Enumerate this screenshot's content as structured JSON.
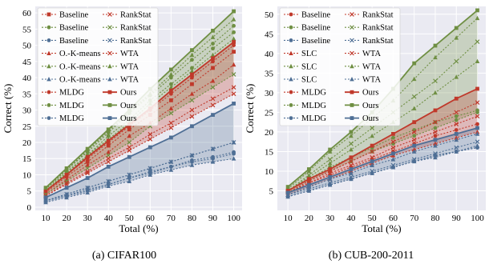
{
  "colors": {
    "baseline": "#c0392b",
    "green": "#6f8f43",
    "blue": "#4f6f95",
    "redfill": "#e9a3a3",
    "greenfill": "#b6c79a",
    "bluefill": "#9fb3c8",
    "panelbg": "#eaeaf2",
    "grid": "#ffffff"
  },
  "chart_data": [
    {
      "type": "line",
      "caption": "(a) CIFAR100",
      "xlabel": "Total (%)",
      "ylabel": "Correct (%)",
      "x": [
        10,
        20,
        30,
        40,
        50,
        60,
        70,
        80,
        90,
        100
      ],
      "xlim": [
        5,
        104
      ],
      "ylim": [
        -1,
        62
      ],
      "yticks": [
        0,
        5,
        10,
        15,
        20,
        25,
        30,
        35,
        40,
        45,
        50,
        55,
        60
      ],
      "legend_placement": "top-left",
      "series": [
        {
          "name": "Baseline",
          "color": "#c0392b",
          "marker": "square",
          "style": "dotted",
          "values": [
            4.5,
            9.5,
            14,
            19,
            24,
            28.5,
            33,
            38,
            43,
            48
          ]
        },
        {
          "name": "Baseline",
          "color": "#6f8f43",
          "marker": "circle",
          "style": "dotted",
          "values": [
            5,
            11,
            16,
            22,
            27,
            33,
            38,
            43,
            49,
            54
          ]
        },
        {
          "name": "Baseline",
          "color": "#4f6f95",
          "marker": "circle",
          "style": "dotted",
          "values": [
            2,
            3.5,
            5,
            7,
            9,
            10.5,
            12.5,
            14,
            15,
            16.5
          ]
        },
        {
          "name": "O.-K-means",
          "color": "#c0392b",
          "marker": "triangle",
          "style": "dotted",
          "values": [
            4,
            8.5,
            13,
            17,
            22,
            26,
            30.5,
            35,
            39,
            44
          ]
        },
        {
          "name": "O.-K-means",
          "color": "#6f8f43",
          "marker": "triangle",
          "style": "dotted",
          "values": [
            5,
            10.5,
            16,
            21,
            26,
            32,
            37,
            42,
            47,
            52
          ]
        },
        {
          "name": "O.-K-means",
          "color": "#4f6f95",
          "marker": "triangle",
          "style": "dotted",
          "values": [
            1.5,
            3,
            4.5,
            6.5,
            8,
            10,
            11.5,
            13,
            14,
            15
          ]
        },
        {
          "name": "MLDG",
          "color": "#c0392b",
          "marker": "circle",
          "style": "dotted",
          "values": [
            5,
            10,
            15,
            20,
            25,
            30,
            35,
            40,
            45,
            50
          ]
        },
        {
          "name": "MLDG",
          "color": "#6f8f43",
          "marker": "circle",
          "style": "dotted",
          "values": [
            5.5,
            11.5,
            17,
            23,
            29,
            34.5,
            40,
            45.5,
            50.5,
            56
          ]
        },
        {
          "name": "MLDG",
          "color": "#4f6f95",
          "marker": "circle",
          "style": "dotted",
          "values": [
            2,
            3.5,
            5.5,
            7,
            9,
            11,
            12.5,
            14.5,
            15.5,
            17
          ]
        },
        {
          "name": "RankStat",
          "color": "#c0392b",
          "marker": "x",
          "style": "dotted",
          "values": [
            3.5,
            7,
            10.5,
            14,
            17.5,
            21,
            24.5,
            28,
            31.5,
            35
          ]
        },
        {
          "name": "RankStat",
          "color": "#6f8f43",
          "marker": "x",
          "style": "dotted",
          "values": [
            4,
            8,
            12,
            16,
            20,
            25,
            29,
            33,
            37,
            41
          ]
        },
        {
          "name": "RankStat",
          "color": "#4f6f95",
          "marker": "x",
          "style": "dotted",
          "values": [
            2,
            4,
            6,
            8,
            10,
            12,
            14,
            16,
            18,
            20
          ]
        },
        {
          "name": "WTA",
          "color": "#c0392b",
          "marker": "x",
          "style": "dotted",
          "values": [
            3.5,
            7.5,
            11,
            15,
            18.5,
            22.5,
            26,
            30,
            33.5,
            37
          ]
        },
        {
          "name": "WTA",
          "color": "#6f8f43",
          "marker": "triangle",
          "style": "dotted",
          "values": [
            5.5,
            11.5,
            17.5,
            23.5,
            29.5,
            35,
            41,
            47,
            52.5,
            58
          ]
        },
        {
          "name": "WTA",
          "color": "#4f6f95",
          "marker": "triangle",
          "style": "dotted",
          "values": [
            2,
            4,
            6,
            8,
            10,
            12,
            14,
            16,
            18,
            20
          ]
        },
        {
          "name": "Ours",
          "color": "#c0392b",
          "marker": "square",
          "style": "solid",
          "values": [
            5,
            10,
            15.5,
            20.5,
            25.5,
            30.5,
            36,
            41,
            46,
            51
          ]
        },
        {
          "name": "Ours",
          "color": "#6f8f43",
          "marker": "square",
          "style": "solid",
          "values": [
            6,
            12,
            18,
            24,
            30,
            36.5,
            42.5,
            48.5,
            54.5,
            60.5
          ]
        },
        {
          "name": "Ours",
          "color": "#4f6f95",
          "marker": "square",
          "style": "solid",
          "values": [
            3,
            6,
            9,
            12.5,
            15.5,
            18.5,
            21.5,
            25,
            28.5,
            32
          ]
        }
      ],
      "bands": [
        {
          "color": "#6f8f43",
          "lower": [
            4,
            8,
            12,
            16,
            20,
            25,
            29,
            33,
            37,
            41
          ],
          "upper": [
            6,
            12,
            18,
            24,
            30,
            36.5,
            42.5,
            48.5,
            54.5,
            60.5
          ]
        },
        {
          "color": "#c0392b",
          "lower": [
            3.5,
            7,
            10.5,
            14,
            17.5,
            21,
            24.5,
            28,
            31.5,
            35
          ],
          "upper": [
            5,
            10,
            15.5,
            20.5,
            25.5,
            30.5,
            36,
            41,
            46,
            51
          ]
        },
        {
          "color": "#4f6f95",
          "lower": [
            1.5,
            3,
            4.5,
            6.5,
            8,
            10,
            11.5,
            13,
            14,
            15
          ],
          "upper": [
            3,
            6,
            9,
            12.5,
            15.5,
            18.5,
            21.5,
            25,
            28.5,
            32
          ]
        }
      ]
    },
    {
      "type": "line",
      "caption": "(b) CUB-200-2011",
      "xlabel": "Total (%)",
      "ylabel": "Correct (%)",
      "x": [
        10,
        20,
        30,
        40,
        50,
        60,
        70,
        80,
        90,
        100
      ],
      "xlim": [
        5,
        104
      ],
      "ylim": [
        0,
        52
      ],
      "yticks": [
        5,
        10,
        15,
        20,
        25,
        30,
        35,
        40,
        45,
        50
      ],
      "legend_placement": "top-left",
      "series": [
        {
          "name": "Baseline",
          "color": "#c0392b",
          "marker": "circle",
          "style": "dotted",
          "values": [
            4.5,
            7,
            9,
            11,
            13,
            15,
            17,
            19,
            20.5,
            22
          ]
        },
        {
          "name": "Baseline",
          "color": "#6f8f43",
          "marker": "circle",
          "style": "dotted",
          "values": [
            4.5,
            7.5,
            10,
            12.5,
            15,
            17,
            19,
            21,
            23,
            25
          ]
        },
        {
          "name": "Baseline",
          "color": "#4f6f95",
          "marker": "circle",
          "style": "dotted",
          "values": [
            3.5,
            5,
            6.5,
            8,
            9.5,
            11,
            12.5,
            14,
            15,
            16
          ]
        },
        {
          "name": "SLC",
          "color": "#c0392b",
          "marker": "triangle",
          "style": "dotted",
          "values": [
            4,
            6,
            8,
            10,
            12,
            14,
            15.5,
            17,
            18.5,
            20
          ]
        },
        {
          "name": "SLC",
          "color": "#6f8f43",
          "marker": "triangle",
          "style": "dotted",
          "values": [
            5,
            8.5,
            12,
            15.5,
            19,
            22.5,
            26,
            30,
            34,
            38
          ]
        },
        {
          "name": "SLC",
          "color": "#4f6f95",
          "marker": "triangle",
          "style": "dotted",
          "values": [
            3.5,
            5,
            6.5,
            8,
            9.5,
            11,
            12.5,
            13.5,
            15,
            16.5
          ]
        },
        {
          "name": "MLDG",
          "color": "#c0392b",
          "marker": "circle",
          "style": "dotted",
          "values": [
            4.5,
            6.5,
            8.5,
            10.5,
            12.5,
            14.5,
            16.5,
            18,
            19.5,
            21
          ]
        },
        {
          "name": "MLDG",
          "color": "#6f8f43",
          "marker": "circle",
          "style": "dotted",
          "values": [
            5,
            8,
            11,
            13.5,
            16,
            18.5,
            20.5,
            22.5,
            24,
            25.5
          ]
        },
        {
          "name": "MLDG",
          "color": "#4f6f95",
          "marker": "circle",
          "style": "dotted",
          "values": [
            3.5,
            5,
            6.5,
            8,
            9.5,
            11,
            12.5,
            14,
            15,
            16
          ]
        },
        {
          "name": "RankStat",
          "color": "#c0392b",
          "marker": "x",
          "style": "dotted",
          "values": [
            4.5,
            7,
            9.5,
            11.5,
            13.5,
            16,
            18,
            20,
            22,
            24
          ]
        },
        {
          "name": "RankStat",
          "color": "#6f8f43",
          "marker": "x",
          "style": "dotted",
          "values": [
            5,
            9,
            13,
            17,
            21,
            25,
            29,
            33,
            38,
            43
          ]
        },
        {
          "name": "RankStat",
          "color": "#4f6f95",
          "marker": "x",
          "style": "dotted",
          "values": [
            4,
            5.5,
            7,
            8.5,
            10,
            11.5,
            13,
            14.5,
            16,
            17.5
          ]
        },
        {
          "name": "WTA",
          "color": "#c0392b",
          "marker": "x",
          "style": "dotted",
          "values": [
            4.5,
            7.5,
            10,
            12.5,
            15,
            17.5,
            20,
            22.5,
            25,
            27.5
          ]
        },
        {
          "name": "WTA",
          "color": "#6f8f43",
          "marker": "triangle",
          "style": "dotted",
          "values": [
            5.5,
            10,
            15,
            19,
            23.5,
            28,
            33.5,
            39,
            44,
            49
          ]
        },
        {
          "name": "WTA",
          "color": "#4f6f95",
          "marker": "triangle",
          "style": "dotted",
          "values": [
            4,
            6,
            8,
            9.5,
            11.5,
            13,
            15,
            16.5,
            18,
            19.5
          ]
        },
        {
          "name": "Ours",
          "color": "#c0392b",
          "marker": "square",
          "style": "solid",
          "values": [
            5,
            8,
            10.5,
            13.5,
            16.5,
            19.5,
            22.5,
            25.5,
            28.5,
            31
          ]
        },
        {
          "name": "Ours",
          "color": "#6f8f43",
          "marker": "square",
          "style": "solid",
          "values": [
            6,
            10.5,
            15.5,
            20,
            25,
            31,
            37.5,
            42,
            46.5,
            51
          ]
        },
        {
          "name": "Ours",
          "color": "#4f6f95",
          "marker": "square",
          "style": "solid",
          "values": [
            4.5,
            6.5,
            8.5,
            10.5,
            12.5,
            14.5,
            16.5,
            18,
            19.5,
            21
          ]
        }
      ],
      "bands": [
        {
          "color": "#6f8f43",
          "lower": [
            4.5,
            7.5,
            10,
            12.5,
            15,
            17,
            19,
            21,
            23,
            25
          ],
          "upper": [
            6,
            10.5,
            15.5,
            20,
            25,
            31,
            37.5,
            42,
            46.5,
            51
          ]
        },
        {
          "color": "#c0392b",
          "lower": [
            4,
            6,
            8,
            10,
            12,
            14,
            15.5,
            17,
            18.5,
            20
          ],
          "upper": [
            5,
            8,
            10.5,
            13.5,
            16.5,
            19.5,
            22.5,
            25.5,
            28.5,
            31
          ]
        },
        {
          "color": "#4f6f95",
          "lower": [
            3.5,
            5,
            6.5,
            8,
            9.5,
            11,
            12.5,
            13.5,
            15,
            16
          ]
        }
      ]
    }
  ]
}
